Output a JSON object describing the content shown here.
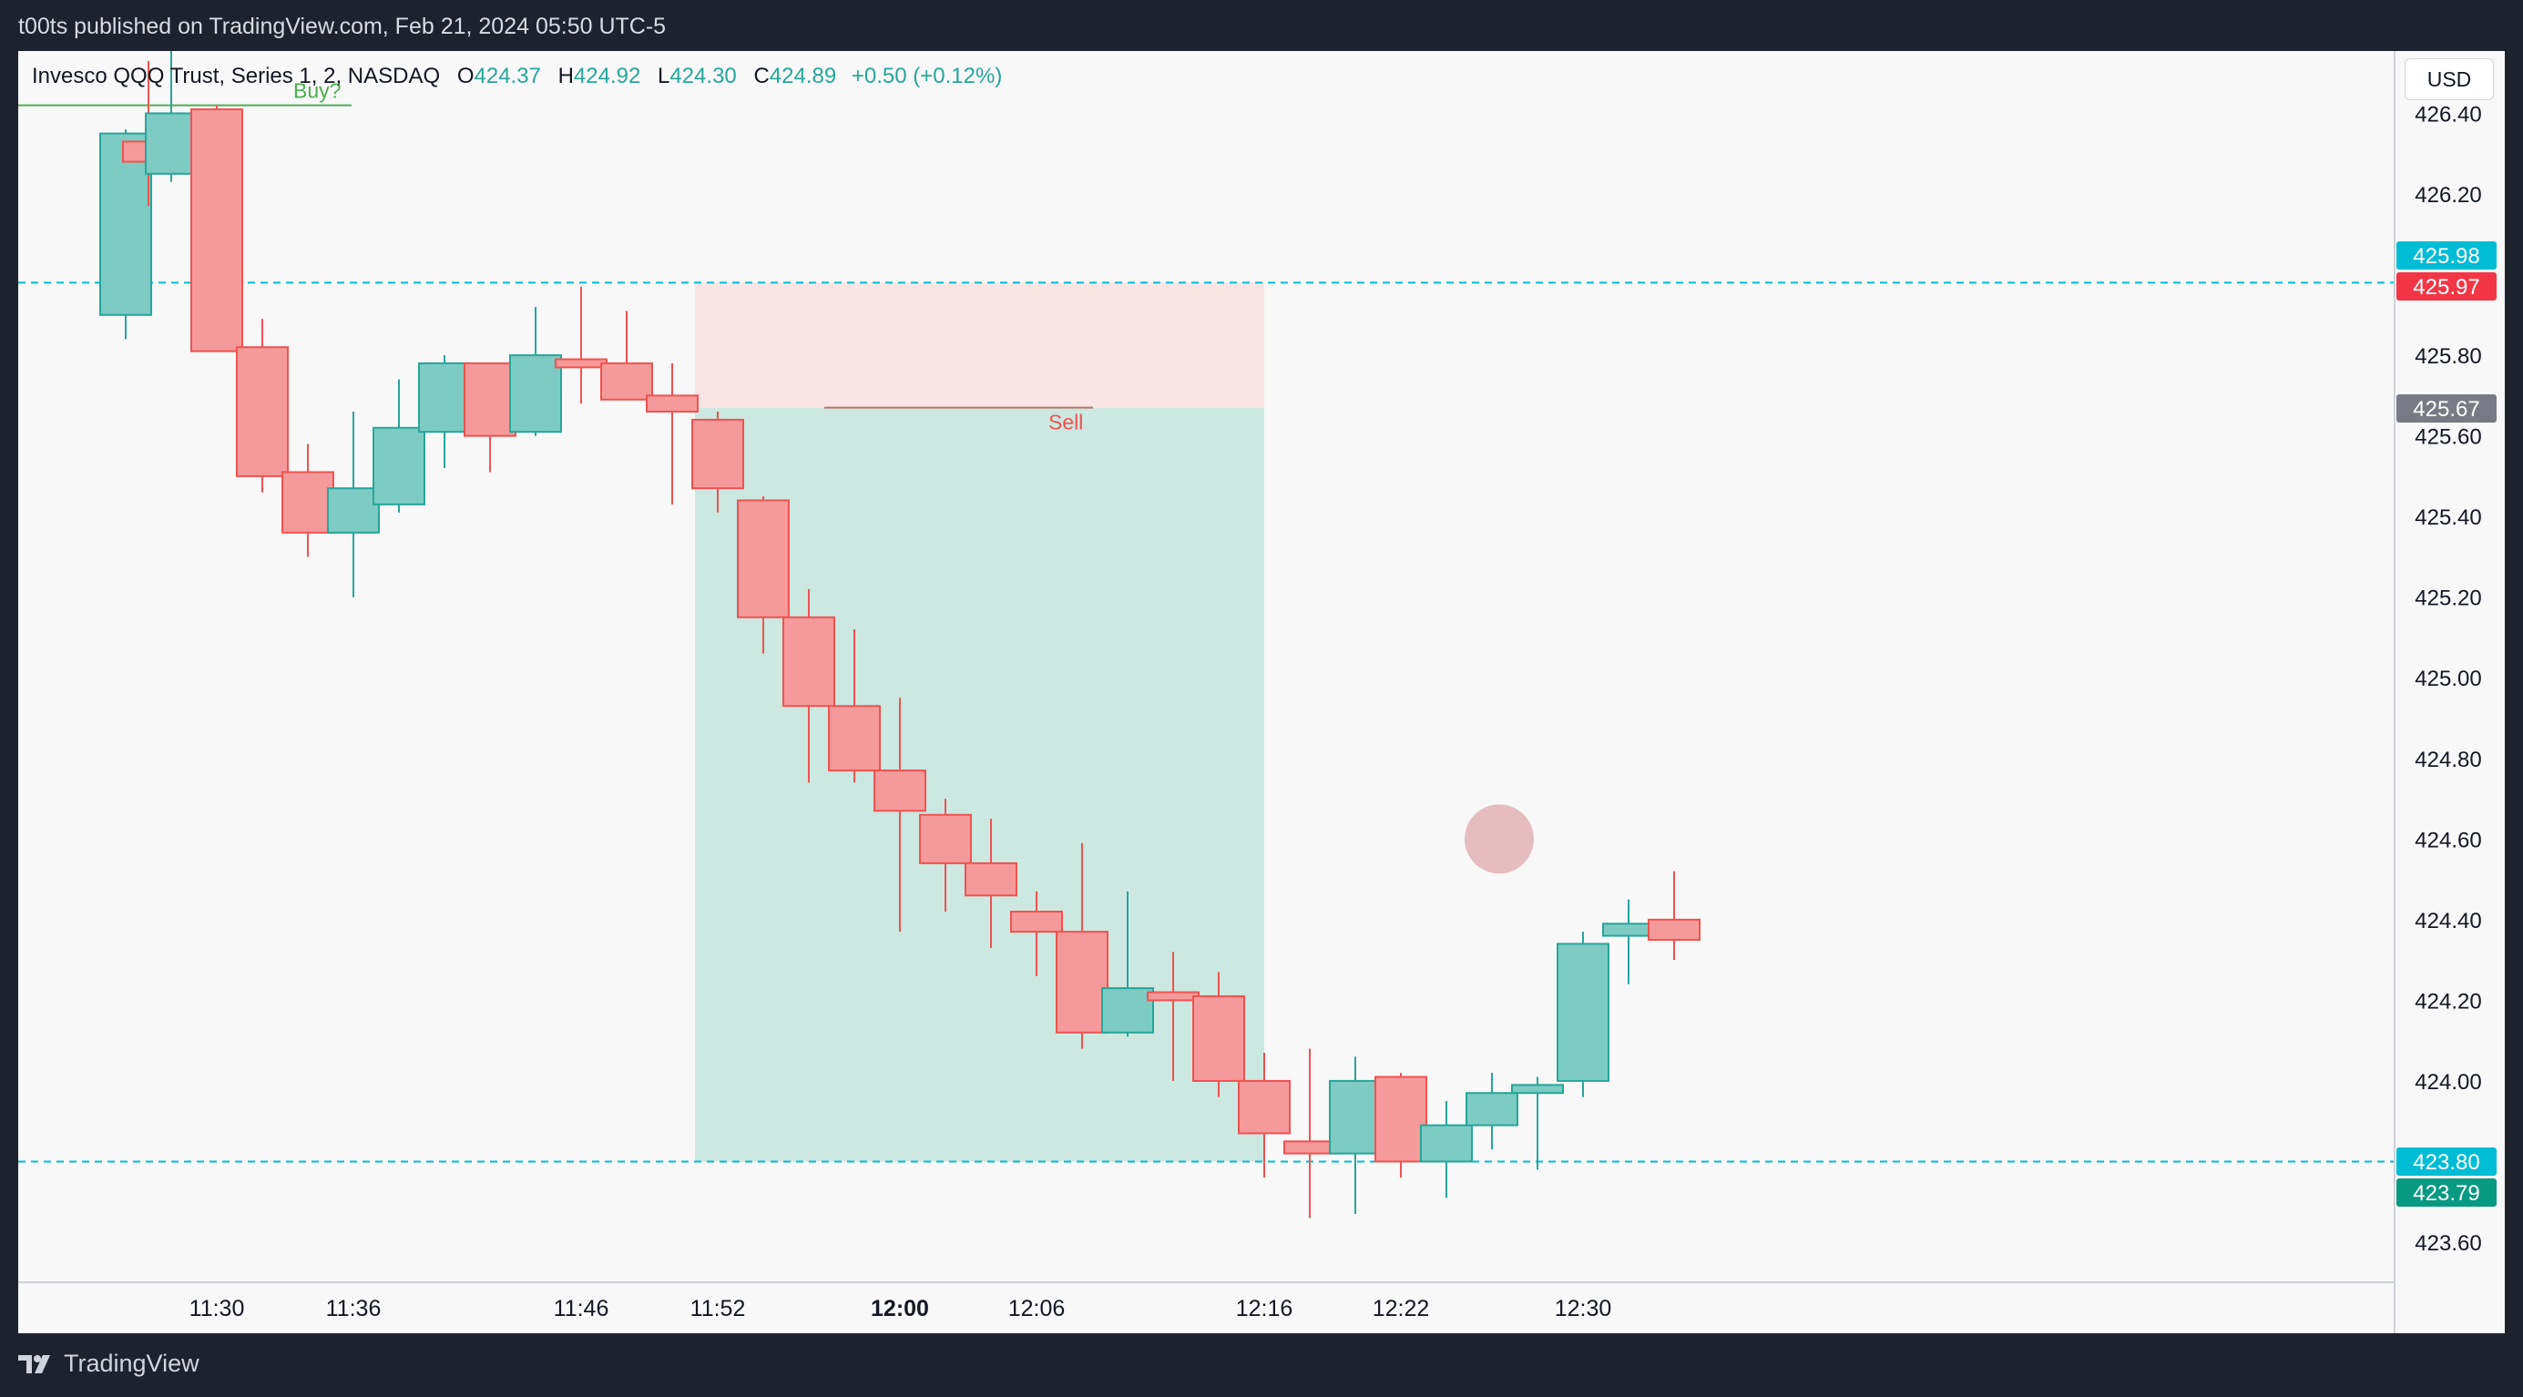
{
  "header": {
    "published_text": "t00ts published on TradingView.com, Feb 21, 2024 05:50 UTC-5"
  },
  "legend": {
    "symbol": "Invesco QQQ Trust, Series 1, 2, NASDAQ",
    "o_label": "O",
    "o_value": "424.37",
    "h_label": "H",
    "h_value": "424.92",
    "l_label": "L",
    "l_value": "424.30",
    "c_label": "C",
    "c_value": "424.89",
    "change": "+0.50 (+0.12%)"
  },
  "currency_button": "USD",
  "footer": {
    "brand": "TradingView"
  },
  "colors": {
    "up": "#26a69a",
    "down": "#ef5350",
    "target_zone": "#cce8e1",
    "stop_zone": "#fae5e5",
    "dashed_line": "#00bcd4",
    "background": "#f8f8f8"
  },
  "chart_data": {
    "type": "candlestick",
    "ylim": [
      423.5,
      426.5
    ],
    "y_ticks": [
      "426.40",
      "426.20",
      "425.80",
      "425.60",
      "425.40",
      "425.20",
      "425.00",
      "424.80",
      "424.60",
      "424.40",
      "424.20",
      "424.00",
      "423.60"
    ],
    "x_ticks": [
      "11:30",
      "11:36",
      "11:46",
      "11:52",
      "12:00",
      "12:06",
      "12:16",
      "12:22",
      "12:30"
    ],
    "x_tick_bold": "12:00",
    "candles": [
      {
        "t": "11:26",
        "o": 425.9,
        "h": 426.36,
        "l": 425.84,
        "c": 426.35
      },
      {
        "t": "11:27",
        "o": 426.33,
        "h": 426.53,
        "l": 426.17,
        "c": 426.28
      },
      {
        "t": "11:28",
        "o": 426.25,
        "h": 426.57,
        "l": 426.23,
        "c": 426.4
      },
      {
        "t": "11:30",
        "o": 426.41,
        "h": 426.42,
        "l": 425.81,
        "c": 425.81
      },
      {
        "t": "11:32",
        "o": 425.82,
        "h": 425.89,
        "l": 425.46,
        "c": 425.5
      },
      {
        "t": "11:34",
        "o": 425.51,
        "h": 425.58,
        "l": 425.3,
        "c": 425.36
      },
      {
        "t": "11:36",
        "o": 425.36,
        "h": 425.66,
        "l": 425.2,
        "c": 425.47
      },
      {
        "t": "11:38",
        "o": 425.43,
        "h": 425.74,
        "l": 425.41,
        "c": 425.62
      },
      {
        "t": "11:40",
        "o": 425.61,
        "h": 425.8,
        "l": 425.52,
        "c": 425.78
      },
      {
        "t": "11:42",
        "o": 425.78,
        "h": 425.78,
        "l": 425.51,
        "c": 425.6
      },
      {
        "t": "11:44",
        "o": 425.61,
        "h": 425.92,
        "l": 425.6,
        "c": 425.8
      },
      {
        "t": "11:46",
        "o": 425.79,
        "h": 425.97,
        "l": 425.68,
        "c": 425.77
      },
      {
        "t": "11:48",
        "o": 425.78,
        "h": 425.91,
        "l": 425.69,
        "c": 425.69
      },
      {
        "t": "11:50",
        "o": 425.7,
        "h": 425.78,
        "l": 425.43,
        "c": 425.66
      },
      {
        "t": "11:52",
        "o": 425.64,
        "h": 425.66,
        "l": 425.41,
        "c": 425.47
      },
      {
        "t": "11:54",
        "o": 425.44,
        "h": 425.45,
        "l": 425.06,
        "c": 425.15
      },
      {
        "t": "11:56",
        "o": 425.15,
        "h": 425.22,
        "l": 424.74,
        "c": 424.93
      },
      {
        "t": "11:58",
        "o": 424.93,
        "h": 425.12,
        "l": 424.74,
        "c": 424.77
      },
      {
        "t": "12:00",
        "o": 424.77,
        "h": 424.95,
        "l": 424.37,
        "c": 424.67
      },
      {
        "t": "12:02",
        "o": 424.66,
        "h": 424.7,
        "l": 424.42,
        "c": 424.54
      },
      {
        "t": "12:04",
        "o": 424.54,
        "h": 424.65,
        "l": 424.33,
        "c": 424.46
      },
      {
        "t": "12:06",
        "o": 424.42,
        "h": 424.47,
        "l": 424.26,
        "c": 424.37
      },
      {
        "t": "12:08",
        "o": 424.37,
        "h": 424.59,
        "l": 424.08,
        "c": 424.12
      },
      {
        "t": "12:10",
        "o": 424.12,
        "h": 424.47,
        "l": 424.11,
        "c": 424.23
      },
      {
        "t": "12:12",
        "o": 424.22,
        "h": 424.32,
        "l": 424.0,
        "c": 424.2
      },
      {
        "t": "12:14",
        "o": 424.21,
        "h": 424.27,
        "l": 423.96,
        "c": 424.0
      },
      {
        "t": "12:16",
        "o": 424.0,
        "h": 424.07,
        "l": 423.76,
        "c": 423.87
      },
      {
        "t": "12:18",
        "o": 423.85,
        "h": 424.08,
        "l": 423.66,
        "c": 423.82
      },
      {
        "t": "12:20",
        "o": 423.82,
        "h": 424.06,
        "l": 423.67,
        "c": 424.0
      },
      {
        "t": "12:22",
        "o": 424.01,
        "h": 424.02,
        "l": 423.76,
        "c": 423.8
      },
      {
        "t": "12:24",
        "o": 423.8,
        "h": 423.95,
        "l": 423.71,
        "c": 423.89
      },
      {
        "t": "12:26",
        "o": 423.89,
        "h": 424.02,
        "l": 423.83,
        "c": 423.97
      },
      {
        "t": "12:28",
        "o": 423.97,
        "h": 424.01,
        "l": 423.78,
        "c": 423.99
      },
      {
        "t": "12:30",
        "o": 424.0,
        "h": 424.37,
        "l": 423.96,
        "c": 424.34
      },
      {
        "t": "12:32",
        "o": 424.36,
        "h": 424.45,
        "l": 424.24,
        "c": 424.39
      },
      {
        "t": "12:34",
        "o": 424.4,
        "h": 424.52,
        "l": 424.3,
        "c": 424.35
      }
    ],
    "position": {
      "type": "short",
      "entry": 425.67,
      "stop": 425.98,
      "target": 423.8,
      "start": "11:51",
      "end": "12:16"
    },
    "price_labels": [
      {
        "text": "425.98",
        "color": "#00bcd4"
      },
      {
        "text": "425.97",
        "color": "#f23645"
      },
      {
        "text": "425.67",
        "color": "#787b86"
      },
      {
        "text": "423.80",
        "color": "#00bcd4"
      },
      {
        "text": "423.79",
        "color": "#089981"
      }
    ],
    "annotations": [
      {
        "text": "Buy?",
        "price": 426.42,
        "color": "#4caf50"
      },
      {
        "text": "Sell",
        "price": 425.67,
        "color": "#ef5350"
      }
    ],
    "highlight": {
      "price": 424.6
    }
  }
}
